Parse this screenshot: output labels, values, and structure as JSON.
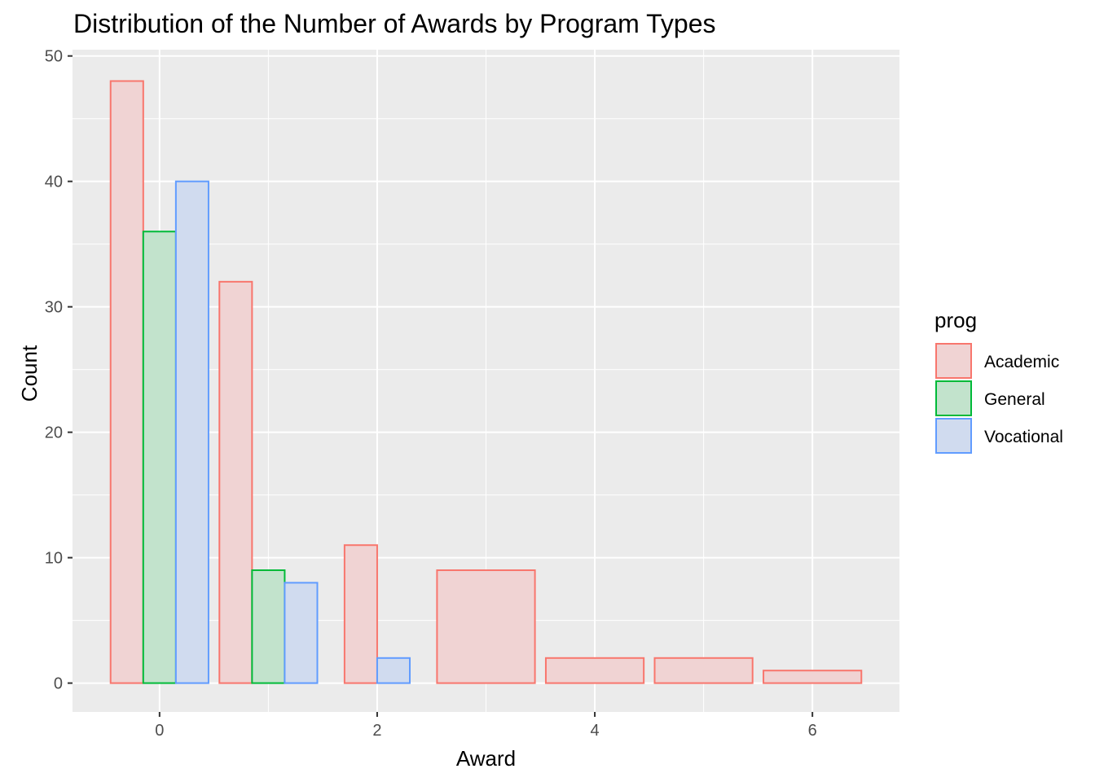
{
  "chart_data": {
    "type": "bar",
    "title": "Distribution of the Number of Awards by Program Types",
    "xlabel": "Award",
    "ylabel": "Count",
    "xlim": [
      -0.8,
      6.8
    ],
    "ylim": [
      -2.3,
      50.5
    ],
    "xticks": [
      0,
      2,
      4,
      6
    ],
    "yticks": [
      0,
      10,
      20,
      30,
      40,
      50
    ],
    "grid": true,
    "legend": {
      "title": "prog",
      "placement": "right"
    },
    "series": [
      {
        "name": "Academic",
        "stroke": "#f8766d",
        "fill": "#f0d3d3",
        "bars": [
          {
            "x": 0,
            "value": 48
          },
          {
            "x": 1,
            "value": 32
          },
          {
            "x": 2,
            "value": 11
          },
          {
            "x": 3,
            "value": 9
          },
          {
            "x": 4,
            "value": 2
          },
          {
            "x": 5,
            "value": 2
          },
          {
            "x": 6,
            "value": 1
          }
        ]
      },
      {
        "name": "General",
        "stroke": "#00ba38",
        "fill": "#c2e3cc",
        "bars": [
          {
            "x": 0,
            "value": 36
          },
          {
            "x": 1,
            "value": 9
          }
        ]
      },
      {
        "name": "Vocational",
        "stroke": "#619cff",
        "fill": "#d0dbef",
        "bars": [
          {
            "x": 0,
            "value": 40
          },
          {
            "x": 1,
            "value": 8
          },
          {
            "x": 2,
            "value": 2
          }
        ]
      }
    ]
  }
}
